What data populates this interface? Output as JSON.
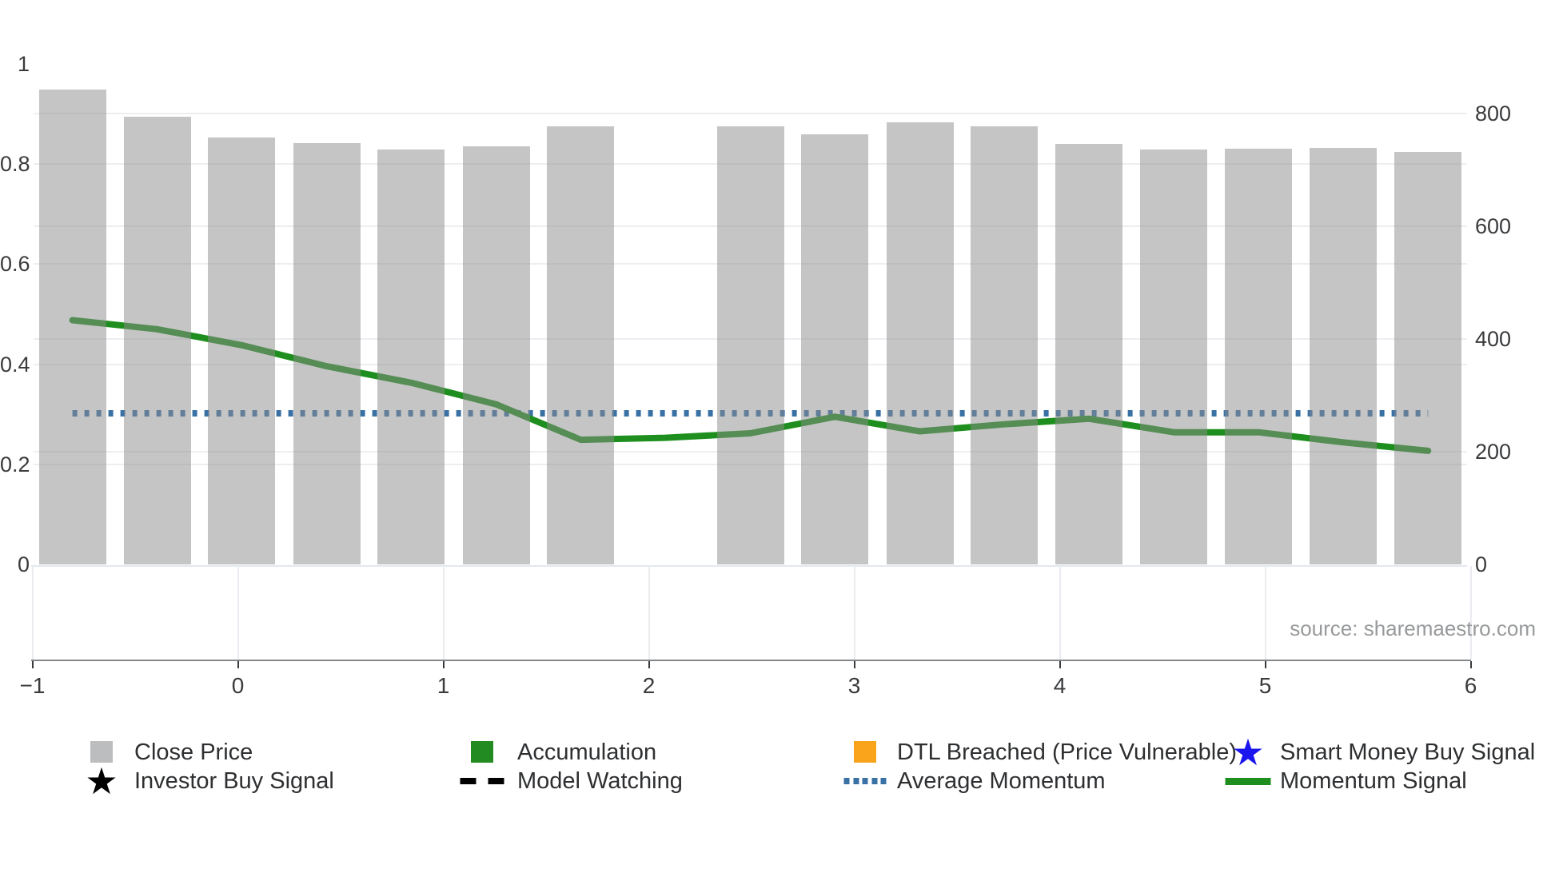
{
  "source_text": "source: sharemaestro.com",
  "chart_data": {
    "type": "composite",
    "title": "",
    "x_axis": {
      "tick_values": [
        -1,
        0,
        1,
        2,
        3,
        4,
        5,
        6
      ],
      "tick_labels": [
        "−1",
        "0",
        "1",
        "2",
        "3",
        "4",
        "5",
        "6"
      ],
      "range": [
        -1.01,
        6.04
      ],
      "grid": "below-axis-only"
    },
    "left_y_axis": {
      "tick_values": [
        0,
        0.2,
        0.4,
        0.6,
        0.8,
        1
      ],
      "tick_labels": [
        "0",
        "0.2",
        "0.4",
        "0.6",
        "0.8",
        "1"
      ],
      "range": [
        0,
        1.0
      ],
      "grid": true
    },
    "right_y_axis": {
      "tick_values": [
        0,
        200,
        400,
        600,
        800
      ],
      "tick_labels": [
        "0",
        "200",
        "400",
        "600",
        "800"
      ],
      "range": [
        0,
        800
      ],
      "grid": true
    },
    "series": {
      "close_price": {
        "name": "Close Price",
        "type": "bar",
        "axis": "right",
        "color": "rgba(139,139,139,0.5)",
        "bar_width_units": 0.327,
        "x": [
          -0.805,
          -0.393,
          0.019,
          0.432,
          0.844,
          1.257,
          1.669,
          2.494,
          2.906,
          3.319,
          3.731,
          4.143,
          4.556,
          4.968,
          5.381,
          5.793
        ],
        "values": [
          843,
          795,
          758,
          747,
          736,
          742,
          777,
          777,
          763,
          785,
          777,
          746,
          736,
          738,
          739,
          732
        ]
      },
      "momentum_signal": {
        "name": "Momentum Signal",
        "type": "line",
        "axis": "left",
        "color": "#1e8f1e",
        "stroke_width": 8,
        "x": [
          -0.805,
          -0.393,
          0.019,
          0.432,
          0.844,
          1.257,
          1.669,
          2.081,
          2.494,
          2.906,
          3.319,
          3.731,
          4.143,
          4.556,
          4.968,
          5.381,
          5.793
        ],
        "values": [
          0.488,
          0.47,
          0.438,
          0.396,
          0.363,
          0.32,
          0.249,
          0.253,
          0.262,
          0.295,
          0.266,
          0.28,
          0.291,
          0.264,
          0.264,
          0.244,
          0.227
        ]
      },
      "average_momentum": {
        "name": "Average Momentum",
        "type": "dotted-hline",
        "axis": "left",
        "color": "#3a71a5",
        "stroke_width": 8,
        "value": 0.302,
        "x_start": -0.805,
        "x_end": 5.793
      }
    },
    "legend": [
      {
        "label": "Close Price",
        "marker": "square",
        "color": "#bcbdbe"
      },
      {
        "label": "Accumulation",
        "marker": "square",
        "color": "#228b22"
      },
      {
        "label": "DTL Breached (Price Vulnerable)",
        "marker": "square",
        "color": "#f9a41b"
      },
      {
        "label": "Smart Money Buy Signal",
        "marker": "star",
        "color": "#1b15ee"
      },
      {
        "label": "Investor Buy Signal",
        "marker": "star",
        "color": "#000000"
      },
      {
        "label": "Model Watching",
        "marker": "dash",
        "color": "#000000"
      },
      {
        "label": "Average Momentum",
        "marker": "dots",
        "color": "#3a71a5"
      },
      {
        "label": "Momentum Signal",
        "marker": "line",
        "color": "#1e8f1e"
      }
    ]
  }
}
